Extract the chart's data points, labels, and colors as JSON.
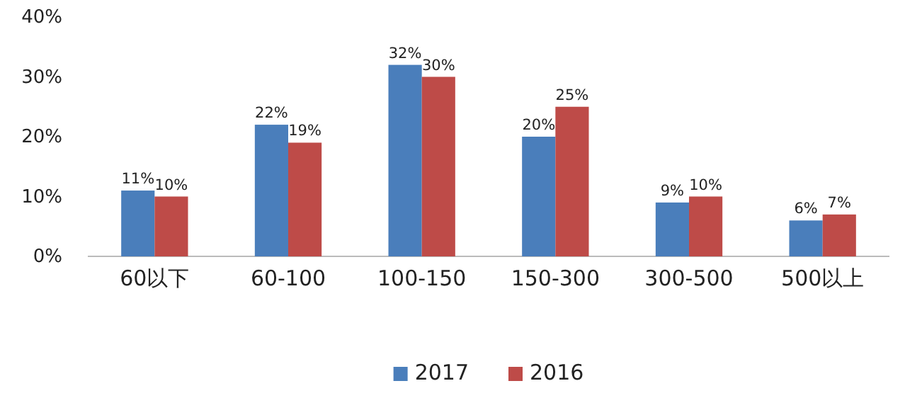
{
  "chart_data": {
    "type": "bar",
    "categories": [
      "60以下",
      "60-100",
      "100-150",
      "150-300",
      "300-500",
      "500以上"
    ],
    "series": [
      {
        "name": "2017",
        "color": "#4a7ebb",
        "values": [
          11,
          22,
          32,
          20,
          9,
          6
        ],
        "value_labels": [
          "11%",
          "22%",
          "32%",
          "20%",
          "9%",
          "6%"
        ]
      },
      {
        "name": "2016",
        "color": "#be4b48",
        "values": [
          10,
          19,
          30,
          25,
          10,
          7
        ],
        "value_labels": [
          "10%",
          "19%",
          "30%",
          "25%",
          "10%",
          "7%"
        ]
      }
    ],
    "ylim": [
      0,
      40
    ],
    "yticks": [
      {
        "value": 0,
        "label": "0%"
      },
      {
        "value": 10,
        "label": "10%"
      },
      {
        "value": 20,
        "label": "20%"
      },
      {
        "value": 30,
        "label": "30%"
      },
      {
        "value": 40,
        "label": "40%"
      }
    ],
    "grid": false,
    "legend": "bottom"
  }
}
